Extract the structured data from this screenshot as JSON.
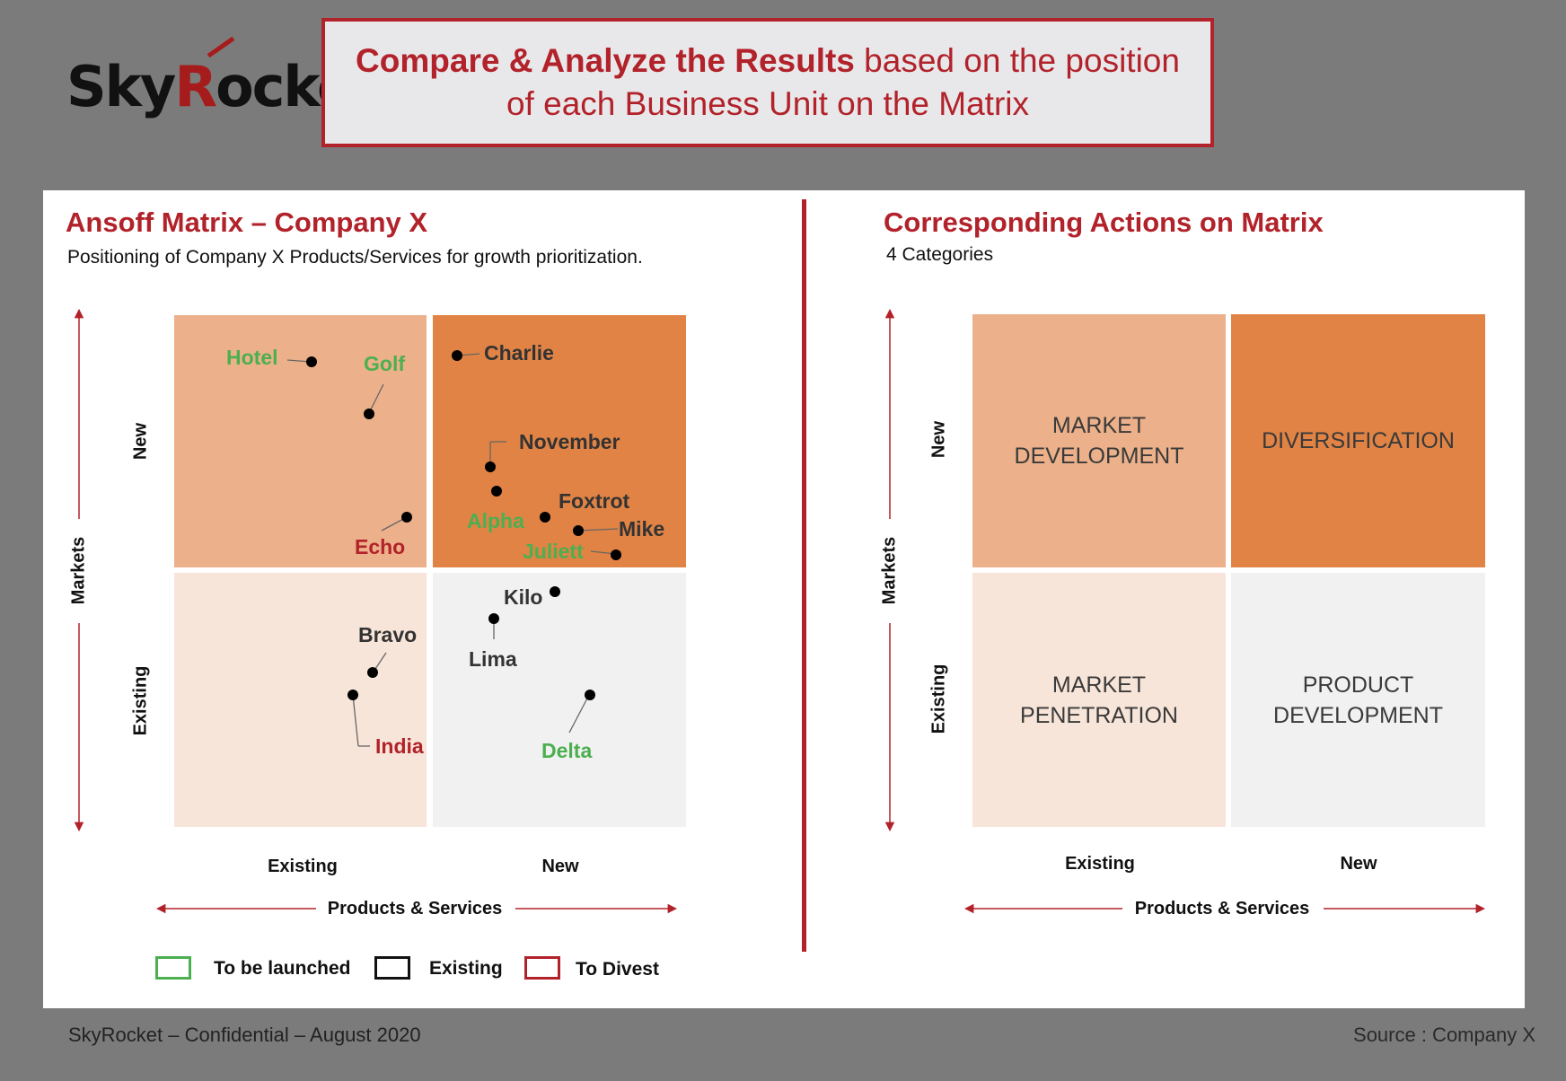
{
  "logo": {
    "text_a": "Sky",
    "text_r": "R",
    "text_b": "ocke"
  },
  "header": {
    "bold": "Compare & Analyze the Results",
    "rest": " based on the position of each Business Unit on the Matrix"
  },
  "left": {
    "title": "Ansoff Matrix – Company X",
    "subtitle": "Positioning of Company X Products/Services for growth prioritization.",
    "y_axis": "Markets",
    "y_new": "New",
    "y_existing": "Existing",
    "x_existing": "Existing",
    "x_new": "New",
    "x_axis": "Products & Services"
  },
  "right": {
    "title": "Corresponding Actions on Matrix",
    "subtitle": "4 Categories",
    "y_axis": "Markets",
    "y_new": "New",
    "y_existing": "Existing",
    "x_existing": "Existing",
    "x_new": "New",
    "x_axis": "Products & Services",
    "categories": {
      "market_development": "MARKET DEVELOPMENT",
      "diversification": "DIVERSIFICATION",
      "market_penetration": "MARKET PENETRATION",
      "product_development": "PRODUCT DEVELOPMENT"
    }
  },
  "units": [
    {
      "name": "Hotel",
      "status": "launch"
    },
    {
      "name": "Golf",
      "status": "launch"
    },
    {
      "name": "Echo",
      "status": "divest"
    },
    {
      "name": "Charlie",
      "status": "existing"
    },
    {
      "name": "November",
      "status": "existing"
    },
    {
      "name": "Foxtrot",
      "status": "existing"
    },
    {
      "name": "Alpha",
      "status": "launch"
    },
    {
      "name": "Mike",
      "status": "existing"
    },
    {
      "name": "Juliett",
      "status": "launch"
    },
    {
      "name": "Kilo",
      "status": "existing"
    },
    {
      "name": "Lima",
      "status": "existing"
    },
    {
      "name": "Bravo",
      "status": "existing"
    },
    {
      "name": "India",
      "status": "divest"
    },
    {
      "name": "Delta",
      "status": "launch"
    }
  ],
  "legend": {
    "launch": "To be launched",
    "existing": "Existing",
    "divest": "To Divest"
  },
  "colors": {
    "launch": "#4caf50",
    "existing": "#222222",
    "divest": "#b2222a",
    "accent": "#b2222a"
  },
  "footer": {
    "left": "SkyRocket – Confidential – August 2020",
    "right": "Source : Company X"
  }
}
